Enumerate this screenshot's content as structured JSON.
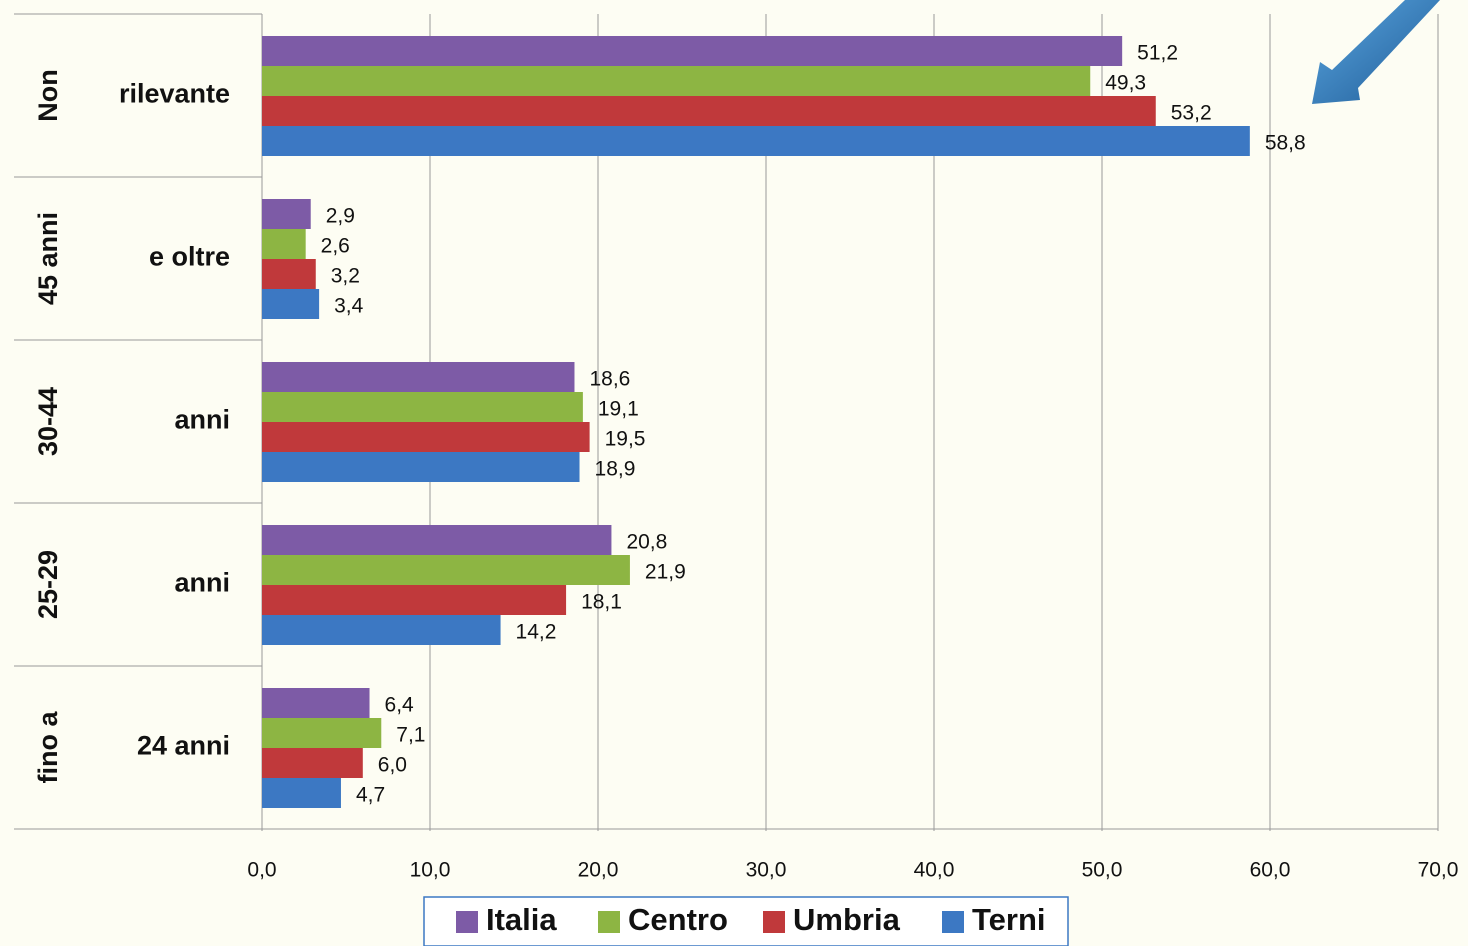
{
  "chart_data": {
    "type": "bar",
    "orientation": "horizontal",
    "categories": [
      [
        "Non",
        "rilevante"
      ],
      [
        "45 anni",
        "e oltre"
      ],
      [
        "30-44",
        "anni"
      ],
      [
        "25-29",
        "anni"
      ],
      [
        "fino a",
        "24 anni"
      ]
    ],
    "series": [
      {
        "name": "Italia",
        "color": "#7d5ba6",
        "values": [
          51.2,
          2.9,
          18.6,
          20.8,
          6.4
        ],
        "value_labels": [
          "51,2",
          "2,9",
          "18,6",
          "20,8",
          "6,4"
        ]
      },
      {
        "name": "Centro",
        "color": "#8db543",
        "values": [
          49.3,
          2.6,
          19.1,
          21.9,
          7.1
        ],
        "value_labels": [
          "49,3",
          "2,6",
          "19,1",
          "21,9",
          "7,1"
        ]
      },
      {
        "name": "Umbria",
        "color": "#c0393b",
        "values": [
          53.2,
          3.2,
          19.5,
          18.1,
          6.0
        ],
        "value_labels": [
          "53,2",
          "3,2",
          "19,5",
          "18,1",
          "6,0"
        ]
      },
      {
        "name": "Terni",
        "color": "#3c78c3",
        "values": [
          58.8,
          3.4,
          18.9,
          14.2,
          4.7
        ],
        "value_labels": [
          "58,8",
          "3,4",
          "18,9",
          "14,2",
          "4,7"
        ]
      }
    ],
    "xlim": [
      0,
      70
    ],
    "xticks": [
      {
        "value": 0,
        "label": "0,0"
      },
      {
        "value": 10,
        "label": "10,0"
      },
      {
        "value": 20,
        "label": "20,0"
      },
      {
        "value": 30,
        "label": "30,0"
      },
      {
        "value": 40,
        "label": "40,0"
      },
      {
        "value": 50,
        "label": "50,0"
      },
      {
        "value": 60,
        "label": "60,0"
      },
      {
        "value": 70,
        "label": "70,0"
      }
    ],
    "grid": true,
    "legend": "bottom"
  }
}
